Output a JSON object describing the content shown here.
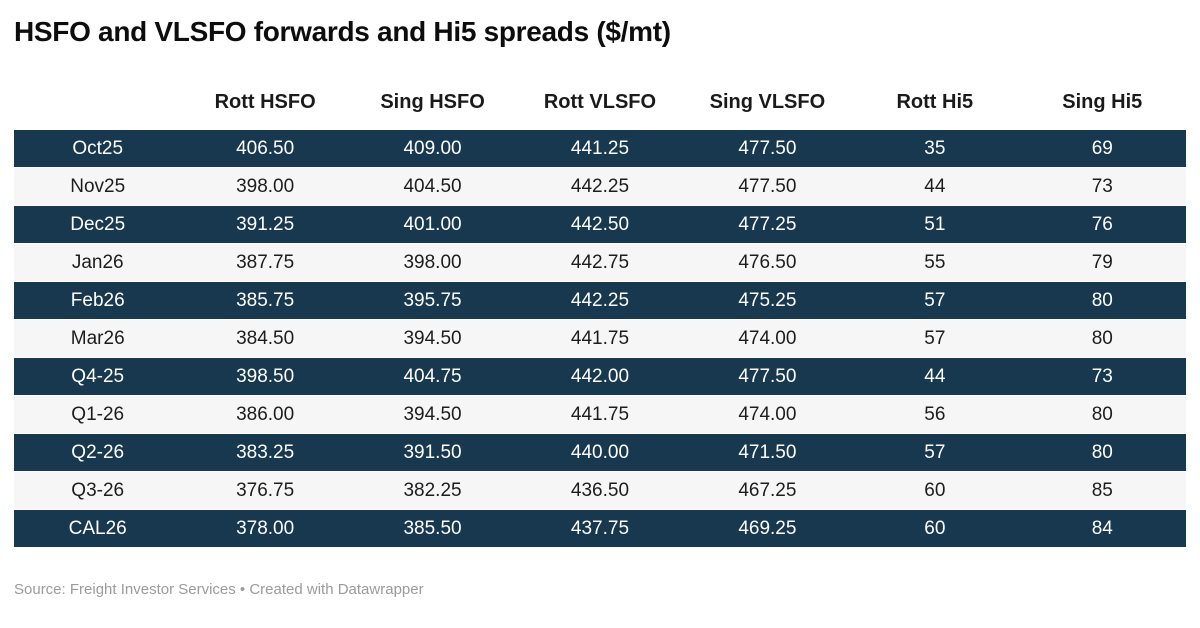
{
  "title": "HSFO and VLSFO forwards and Hi5 spreads ($/mt)",
  "footer": {
    "source_text": "Source: Freight Investor Services • Created with Datawrapper"
  },
  "colors": {
    "dark_row_bg": "#17384e",
    "light_row_bg": "#f6f6f6",
    "dark_row_text": "#ffffff",
    "light_row_text": "#1d1d1d",
    "header_text": "#1a1a1a",
    "title_text": "#0d0d0d",
    "footer_text": "#9b9b9b"
  },
  "table": {
    "columns": [
      "",
      "Rott HSFO",
      "Sing HSFO",
      "Rott VLSFO",
      "Sing VLSFO",
      "Rott Hi5",
      "Sing Hi5"
    ],
    "rows": [
      {
        "label": "Oct25",
        "values": [
          "406.50",
          "409.00",
          "441.25",
          "477.50",
          "35",
          "69"
        ]
      },
      {
        "label": "Nov25",
        "values": [
          "398.00",
          "404.50",
          "442.25",
          "477.50",
          "44",
          "73"
        ]
      },
      {
        "label": "Dec25",
        "values": [
          "391.25",
          "401.00",
          "442.50",
          "477.25",
          "51",
          "76"
        ]
      },
      {
        "label": "Jan26",
        "values": [
          "387.75",
          "398.00",
          "442.75",
          "476.50",
          "55",
          "79"
        ]
      },
      {
        "label": "Feb26",
        "values": [
          "385.75",
          "395.75",
          "442.25",
          "475.25",
          "57",
          "80"
        ]
      },
      {
        "label": "Mar26",
        "values": [
          "384.50",
          "394.50",
          "441.75",
          "474.00",
          "57",
          "80"
        ]
      },
      {
        "label": "Q4-25",
        "values": [
          "398.50",
          "404.75",
          "442.00",
          "477.50",
          "44",
          "73"
        ]
      },
      {
        "label": "Q1-26",
        "values": [
          "386.00",
          "394.50",
          "441.75",
          "474.00",
          "56",
          "80"
        ]
      },
      {
        "label": "Q2-26",
        "values": [
          "383.25",
          "391.50",
          "440.00",
          "471.50",
          "57",
          "80"
        ]
      },
      {
        "label": "Q3-26",
        "values": [
          "376.75",
          "382.25",
          "436.50",
          "467.25",
          "60",
          "85"
        ]
      },
      {
        "label": "CAL26",
        "values": [
          "378.00",
          "385.50",
          "437.75",
          "469.25",
          "60",
          "84"
        ]
      }
    ]
  },
  "chart_data": {
    "type": "table",
    "title": "HSFO and VLSFO forwards and Hi5 spreads ($/mt)",
    "columns": [
      "Rott HSFO",
      "Sing HSFO",
      "Rott VLSFO",
      "Sing VLSFO",
      "Rott Hi5",
      "Sing Hi5"
    ],
    "row_labels": [
      "Oct25",
      "Nov25",
      "Dec25",
      "Jan26",
      "Feb26",
      "Mar26",
      "Q4-25",
      "Q1-26",
      "Q2-26",
      "Q3-26",
      "CAL26"
    ],
    "rows": [
      [
        406.5,
        409.0,
        441.25,
        477.5,
        35,
        69
      ],
      [
        398.0,
        404.5,
        442.25,
        477.5,
        44,
        73
      ],
      [
        391.25,
        401.0,
        442.5,
        477.25,
        51,
        76
      ],
      [
        387.75,
        398.0,
        442.75,
        476.5,
        55,
        79
      ],
      [
        385.75,
        395.75,
        442.25,
        475.25,
        57,
        80
      ],
      [
        384.5,
        394.5,
        441.75,
        474.0,
        57,
        80
      ],
      [
        398.5,
        404.75,
        442.0,
        477.5,
        44,
        73
      ],
      [
        386.0,
        394.5,
        441.75,
        474.0,
        56,
        80
      ],
      [
        383.25,
        391.5,
        440.0,
        471.5,
        57,
        80
      ],
      [
        376.75,
        382.25,
        436.5,
        467.25,
        60,
        85
      ],
      [
        378.0,
        385.5,
        437.75,
        469.25,
        60,
        84
      ]
    ],
    "legend_position": "none",
    "grid": false,
    "row_striping": "alternating dark navy / light gray starting dark"
  }
}
